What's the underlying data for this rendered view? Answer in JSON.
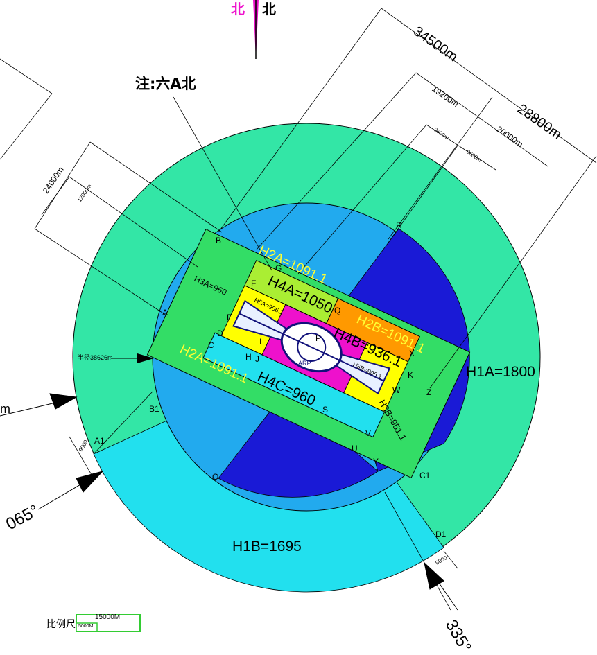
{
  "north": {
    "magenta_label": "北",
    "black_label": "北"
  },
  "note": "注:六A北",
  "dimensions": {
    "d34500": "34500m",
    "d28800": "28800m",
    "d19200": "19200m",
    "d20000": "20000m",
    "d9600a": "9600m",
    "d9600b": "9600m",
    "d24000": "24000m",
    "d12000": "12000m",
    "radius": "半径38626m",
    "d9000a": "9000",
    "d9000b": "9000"
  },
  "zones": {
    "h1a": "H1A=1800",
    "h1b": "H1B=1695",
    "h2a_top": "H2A=1091.1",
    "h2a_bottom": "H2A=1091.1",
    "h2b": "H2B=1091.1",
    "h3a": "H3A=960",
    "h3b": "H3B=951.1",
    "h4a": "H4A=1050",
    "h4b": "H4B=936.1",
    "h4c": "H4C=960",
    "h5a": "H5A=906.1",
    "h5b": "H5B=906.1"
  },
  "points": [
    "B",
    "A",
    "G",
    "F",
    "E",
    "D",
    "C",
    "H",
    "J",
    "I",
    "O",
    "P",
    "K",
    "X",
    "W",
    "Z",
    "V",
    "U",
    "Y",
    "S",
    "R",
    "Q",
    "A1",
    "B1",
    "C1",
    "D1"
  ],
  "arp": "ARP",
  "angles": {
    "a065": "065°",
    "a335": "335°"
  },
  "scale": {
    "label": "比例尺:",
    "big": "15000M",
    "small": "5000M"
  },
  "colors": {
    "outer_ring": "#33e6a6",
    "cyan": "#22e0ee",
    "sky": "#22aaee",
    "deep_blue": "#1a1ad6",
    "green": "#33dd66",
    "yellow": "#ffff00",
    "orange": "#ff9900",
    "magenta": "#ee11cc",
    "navy": "#11117a"
  }
}
